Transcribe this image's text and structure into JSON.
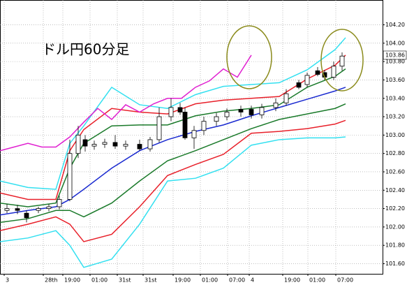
{
  "chart_data": {
    "type": "candlestick",
    "title": "ドル円60分足",
    "price_label": "103.86",
    "xlim": [
      0,
      548
    ],
    "ylim": [
      101.49,
      104.47
    ],
    "grid": true,
    "xticks": [
      {
        "value": 6,
        "label": "3"
      },
      {
        "value": 62,
        "label": "28th"
      },
      {
        "value": 90,
        "label": "19:00"
      },
      {
        "value": 129,
        "label": "01:00"
      },
      {
        "value": 168,
        "label": "31st"
      },
      {
        "value": 205,
        "label": "31st"
      },
      {
        "value": 248,
        "label": "19:00"
      },
      {
        "value": 287,
        "label": "01:00"
      },
      {
        "value": 326,
        "label": "07:00"
      },
      {
        "value": 357,
        "label": "4"
      },
      {
        "value": 405,
        "label": "19:00"
      },
      {
        "value": 441,
        "label": "01:00"
      },
      {
        "value": 481,
        "label": "07:00"
      }
    ],
    "yticks": [
      {
        "value": 104.2,
        "label": "104.20"
      },
      {
        "value": 104.0,
        "label": "104.00"
      },
      {
        "value": 103.8,
        "label": "103.80"
      },
      {
        "value": 103.6,
        "label": "103.60"
      },
      {
        "value": 103.4,
        "label": "103.40"
      },
      {
        "value": 103.2,
        "label": "103.20"
      },
      {
        "value": 103.0,
        "label": "103.00"
      },
      {
        "value": 102.8,
        "label": "102.80"
      },
      {
        "value": 102.6,
        "label": "102.60"
      },
      {
        "value": 102.4,
        "label": "102.40"
      },
      {
        "value": 102.2,
        "label": "102.20"
      },
      {
        "value": 102.0,
        "label": "102.00"
      },
      {
        "value": 101.8,
        "label": "101.80"
      },
      {
        "value": 101.6,
        "label": "101.60"
      }
    ],
    "x": [
      0,
      40,
      80,
      100,
      120,
      160,
      200,
      240,
      280,
      320,
      360,
      400,
      440,
      480,
      495
    ],
    "series": [
      {
        "color": "#33e0f0",
        "values": [
          102.5,
          102.43,
          102.41,
          102.91,
          103.1,
          103.52,
          103.33,
          103.29,
          103.44,
          103.53,
          103.55,
          103.57,
          103.71,
          103.93,
          104.06
        ]
      },
      {
        "color": "#33e0f0",
        "values": [
          101.84,
          101.88,
          101.96,
          101.8,
          101.56,
          101.65,
          102.03,
          102.5,
          102.53,
          102.64,
          102.89,
          102.95,
          102.97,
          102.97,
          102.98
        ]
      },
      {
        "color": "#e8202a",
        "values": [
          102.37,
          102.3,
          102.3,
          102.83,
          103.06,
          103.29,
          103.25,
          103.23,
          103.34,
          103.38,
          103.4,
          103.42,
          103.61,
          103.76,
          103.87
        ]
      },
      {
        "color": "#e8202a",
        "values": [
          101.96,
          102.03,
          102.11,
          102.03,
          101.84,
          101.92,
          102.22,
          102.56,
          102.68,
          102.79,
          103.02,
          103.04,
          103.07,
          103.12,
          103.16
        ]
      },
      {
        "color": "#1a7a2a",
        "values": [
          102.26,
          102.22,
          102.26,
          102.64,
          102.91,
          103.1,
          103.11,
          103.11,
          103.21,
          103.26,
          103.29,
          103.33,
          103.52,
          103.64,
          103.72
        ]
      },
      {
        "color": "#1a7a2a",
        "values": [
          102.05,
          102.09,
          102.18,
          102.18,
          102.11,
          102.26,
          102.5,
          102.72,
          102.83,
          102.95,
          103.07,
          103.17,
          103.23,
          103.29,
          103.34
        ]
      },
      {
        "color": "#1a2ad0",
        "values": [
          102.13,
          102.18,
          102.22,
          102.3,
          102.41,
          102.64,
          102.83,
          102.95,
          103.04,
          103.11,
          103.21,
          103.3,
          103.39,
          103.48,
          103.52
        ]
      }
    ],
    "lagging": {
      "color": "#e020d0",
      "x": [
        0,
        20,
        40,
        60,
        80,
        100,
        120,
        140,
        160,
        180,
        200,
        220,
        240,
        260,
        280,
        300,
        320,
        340,
        360
      ],
      "values": [
        102.83,
        102.87,
        102.91,
        102.87,
        102.87,
        102.98,
        103.14,
        103.29,
        103.17,
        103.33,
        103.25,
        103.34,
        103.4,
        103.4,
        103.52,
        103.59,
        103.72,
        103.63,
        103.87
      ]
    },
    "candles": {
      "x": [
        10,
        25,
        38,
        55,
        70,
        85,
        100,
        112,
        122,
        135,
        150,
        165,
        180,
        200,
        215,
        228,
        245,
        258,
        265,
        278,
        292,
        310,
        325,
        345,
        360,
        375,
        395,
        410,
        428,
        440,
        455,
        465,
        478,
        490
      ],
      "open": [
        102.18,
        102.2,
        102.15,
        102.18,
        102.2,
        102.22,
        102.3,
        102.8,
        102.95,
        102.88,
        102.9,
        102.92,
        102.88,
        102.9,
        102.85,
        102.95,
        103.2,
        103.3,
        103.25,
        102.97,
        103.05,
        103.15,
        103.2,
        103.28,
        103.28,
        103.22,
        103.3,
        103.35,
        103.57,
        103.55,
        103.7,
        103.68,
        103.63,
        103.75
      ],
      "high": [
        102.25,
        102.24,
        102.18,
        102.22,
        102.25,
        102.34,
        102.95,
        103.1,
        103.0,
        102.94,
        102.96,
        103.0,
        102.94,
        102.95,
        102.98,
        103.3,
        103.4,
        103.35,
        103.3,
        103.1,
        103.2,
        103.24,
        103.29,
        103.32,
        103.32,
        103.34,
        103.4,
        103.5,
        103.6,
        103.68,
        103.74,
        103.71,
        103.8,
        103.9
      ],
      "low": [
        102.15,
        102.14,
        102.05,
        102.15,
        102.17,
        102.19,
        102.28,
        102.75,
        102.82,
        102.84,
        102.86,
        102.85,
        102.84,
        102.83,
        102.82,
        102.92,
        103.15,
        103.22,
        102.95,
        102.85,
        103.0,
        103.1,
        103.16,
        103.2,
        103.18,
        103.18,
        103.26,
        103.32,
        103.5,
        103.52,
        103.64,
        103.6,
        103.6,
        103.7
      ],
      "close": [
        102.2,
        102.18,
        102.1,
        102.2,
        102.22,
        102.3,
        102.8,
        103.0,
        102.88,
        102.9,
        102.92,
        102.88,
        102.9,
        102.85,
        102.95,
        103.2,
        103.3,
        103.25,
        102.97,
        103.05,
        103.15,
        103.2,
        103.25,
        103.25,
        103.22,
        103.3,
        103.35,
        103.45,
        103.52,
        103.65,
        103.66,
        103.63,
        103.75,
        103.86
      ]
    }
  }
}
